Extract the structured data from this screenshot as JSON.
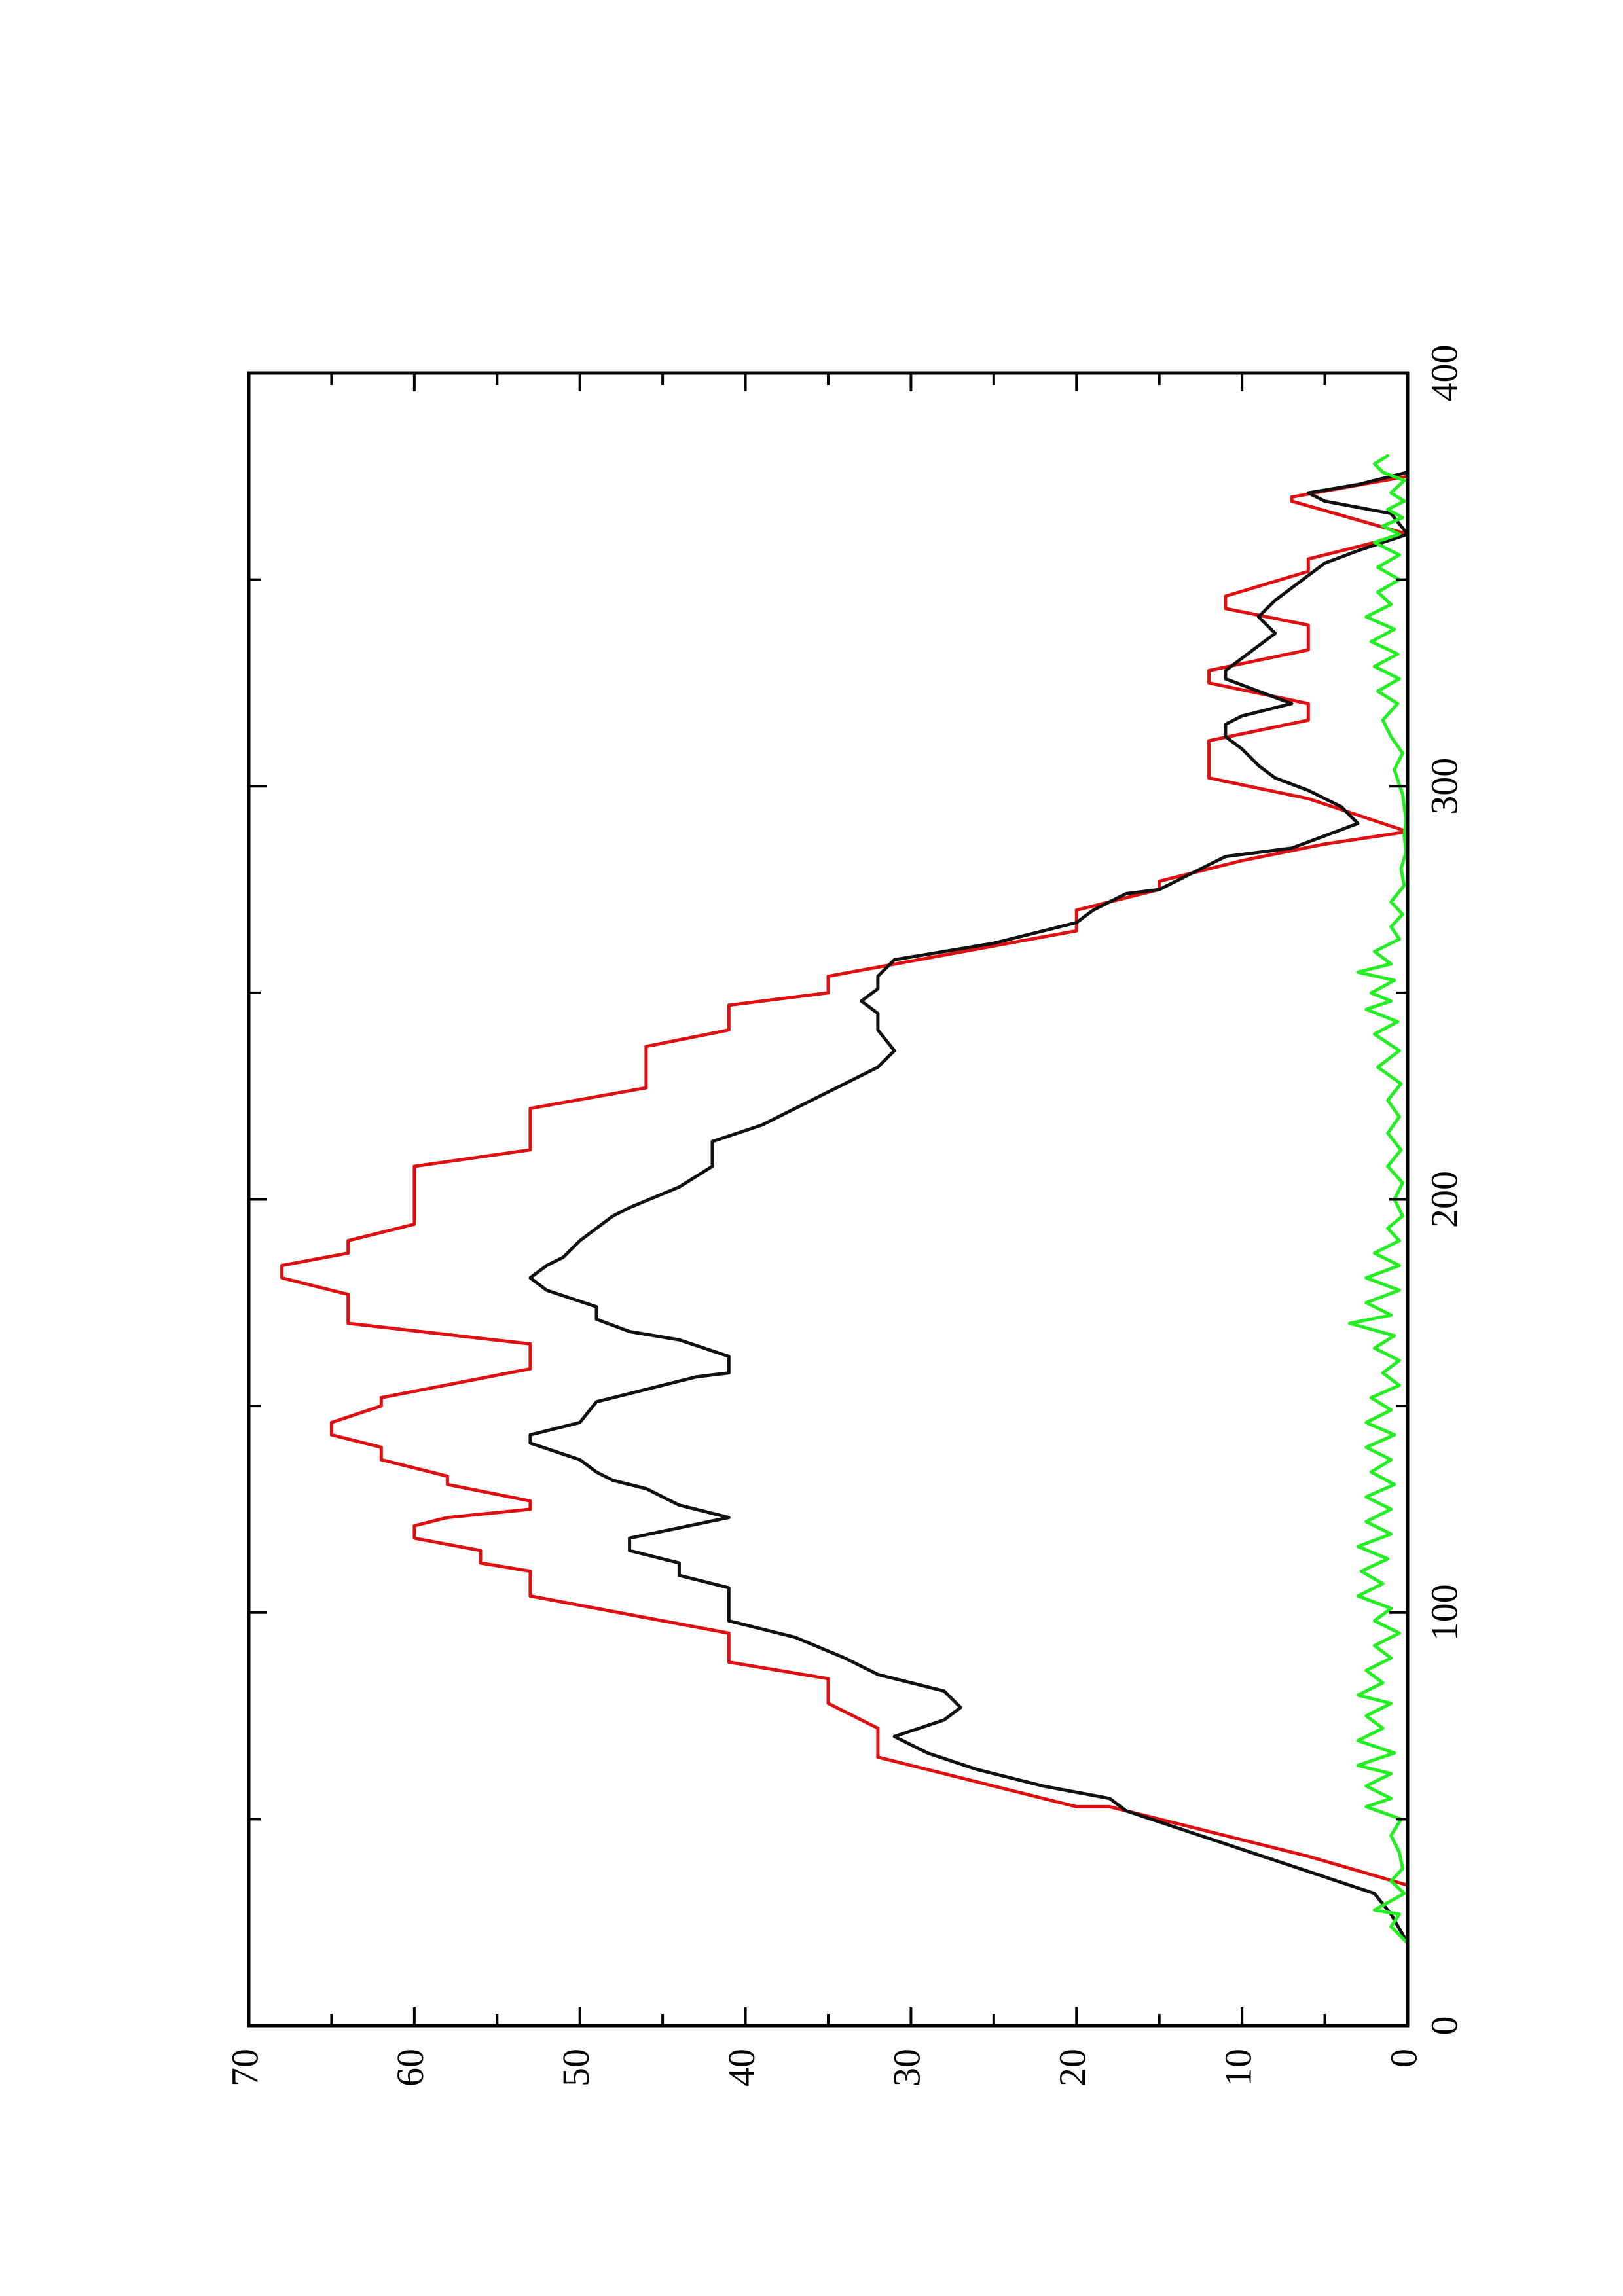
{
  "chart_data": {
    "type": "line",
    "title": "",
    "xlabel": "",
    "ylabel": "",
    "orientation": "rotated-90-ccw",
    "xlim": [
      0,
      400
    ],
    "ylim": [
      0,
      70
    ],
    "x_ticks": [
      0,
      100,
      200,
      300,
      400
    ],
    "y_ticks": [
      0,
      10,
      20,
      30,
      40,
      50,
      60,
      70
    ],
    "x_tick_labels": [
      "0",
      "100",
      "200",
      "300",
      "400"
    ],
    "y_tick_labels": [
      "0",
      "10",
      "20",
      "30",
      "40",
      "50",
      "60",
      "70"
    ],
    "grid": false,
    "legend": "none",
    "series": [
      {
        "color": "#dd1111",
        "points": [
          [
            34,
            0
          ],
          [
            41,
            6
          ],
          [
            47,
            12
          ],
          [
            53,
            18
          ],
          [
            53,
            20
          ],
          [
            59,
            26
          ],
          [
            65,
            32
          ],
          [
            72,
            32
          ],
          [
            78,
            35
          ],
          [
            84,
            35
          ],
          [
            88,
            41
          ],
          [
            95,
            41
          ],
          [
            104,
            53
          ],
          [
            110,
            53
          ],
          [
            112,
            56
          ],
          [
            115,
            56
          ],
          [
            118,
            60
          ],
          [
            121,
            60
          ],
          [
            123,
            58
          ],
          [
            125,
            53
          ],
          [
            127,
            53
          ],
          [
            131,
            58
          ],
          [
            133,
            58
          ],
          [
            137,
            62
          ],
          [
            140,
            62
          ],
          [
            143,
            65
          ],
          [
            146,
            65
          ],
          [
            150,
            62
          ],
          [
            152,
            62
          ],
          [
            159,
            53
          ],
          [
            165,
            53
          ],
          [
            170,
            64
          ],
          [
            177,
            64
          ],
          [
            181,
            68
          ],
          [
            184,
            68
          ],
          [
            187,
            64
          ],
          [
            190,
            64
          ],
          [
            194,
            60
          ],
          [
            208,
            60
          ],
          [
            212,
            53
          ],
          [
            222,
            53
          ],
          [
            227,
            46
          ],
          [
            237,
            46
          ],
          [
            241,
            41
          ],
          [
            247,
            41
          ],
          [
            250,
            35
          ],
          [
            254,
            35
          ],
          [
            265,
            20
          ],
          [
            270,
            20
          ],
          [
            275,
            15
          ],
          [
            277,
            15
          ],
          [
            282,
            10
          ],
          [
            286,
            5
          ],
          [
            289,
            0
          ],
          [
            297,
            6
          ],
          [
            302,
            12
          ],
          [
            311,
            12
          ],
          [
            316,
            6
          ],
          [
            320,
            6
          ],
          [
            325,
            12
          ],
          [
            328,
            12
          ],
          [
            333,
            6
          ],
          [
            339,
            6
          ],
          [
            343,
            11
          ],
          [
            346,
            11
          ],
          [
            352,
            6
          ],
          [
            355,
            6
          ],
          [
            361,
            0
          ],
          [
            369,
            7
          ],
          [
            370,
            7
          ],
          [
            375,
            0
          ]
        ]
      },
      {
        "color": "#111111",
        "points": [
          [
            5,
            0
          ],
          [
            20,
            0
          ],
          [
            27,
            1
          ],
          [
            32,
            2
          ],
          [
            36,
            5
          ],
          [
            40,
            8
          ],
          [
            44,
            11
          ],
          [
            48,
            14
          ],
          [
            52,
            17
          ],
          [
            55,
            18
          ],
          [
            58,
            22
          ],
          [
            62,
            26
          ],
          [
            66,
            29
          ],
          [
            70,
            31
          ],
          [
            74,
            28
          ],
          [
            77,
            27
          ],
          [
            81,
            28
          ],
          [
            85,
            32
          ],
          [
            89,
            34
          ],
          [
            94,
            37
          ],
          [
            98,
            41
          ],
          [
            106,
            41
          ],
          [
            109,
            44
          ],
          [
            112,
            44
          ],
          [
            115,
            47
          ],
          [
            118,
            47
          ],
          [
            123,
            41
          ],
          [
            126,
            44
          ],
          [
            130,
            46
          ],
          [
            132,
            48
          ],
          [
            134,
            49
          ],
          [
            137,
            50
          ],
          [
            141,
            53
          ],
          [
            143,
            53
          ],
          [
            146,
            50
          ],
          [
            151,
            49
          ],
          [
            153,
            47
          ],
          [
            157,
            43
          ],
          [
            158,
            41
          ],
          [
            162,
            41
          ],
          [
            166,
            44
          ],
          [
            168,
            47
          ],
          [
            171,
            49
          ],
          [
            174,
            49
          ],
          [
            178,
            52
          ],
          [
            181,
            53
          ],
          [
            184,
            52
          ],
          [
            186,
            51
          ],
          [
            190,
            50
          ],
          [
            196,
            48
          ],
          [
            198,
            47
          ],
          [
            203,
            44
          ],
          [
            208,
            42
          ],
          [
            211,
            42
          ],
          [
            214,
            42
          ],
          [
            218,
            39
          ],
          [
            222,
            37
          ],
          [
            226,
            35
          ],
          [
            232,
            32
          ],
          [
            236,
            31
          ],
          [
            241,
            32
          ],
          [
            245,
            32
          ],
          [
            248,
            33
          ],
          [
            251,
            32
          ],
          [
            254,
            32
          ],
          [
            258,
            31
          ],
          [
            262,
            25
          ],
          [
            267,
            20
          ],
          [
            270,
            19
          ],
          [
            274,
            17
          ],
          [
            275,
            15
          ],
          [
            279,
            13
          ],
          [
            283,
            11
          ],
          [
            285,
            7
          ],
          [
            288,
            5
          ],
          [
            291,
            3
          ],
          [
            295,
            4
          ],
          [
            299,
            6
          ],
          [
            302,
            8
          ],
          [
            305,
            9
          ],
          [
            309,
            10
          ],
          [
            312,
            11
          ],
          [
            315,
            11
          ],
          [
            317,
            10
          ],
          [
            320,
            7
          ],
          [
            323,
            9
          ],
          [
            326,
            11
          ],
          [
            328,
            11
          ],
          [
            331,
            10
          ],
          [
            334,
            9
          ],
          [
            337,
            8
          ],
          [
            341,
            9
          ],
          [
            345,
            8
          ],
          [
            348,
            7
          ],
          [
            351,
            6
          ],
          [
            354,
            5
          ],
          [
            357,
            3
          ],
          [
            361,
            0
          ],
          [
            366,
            1
          ],
          [
            369,
            5
          ],
          [
            371,
            6
          ],
          [
            373,
            3
          ],
          [
            376,
            0
          ],
          [
            381,
            0
          ]
        ]
      },
      {
        "color": "#22ee22",
        "points": [
          [
            5,
            0
          ],
          [
            20,
            0
          ],
          [
            24,
            1
          ],
          [
            27,
            0.5
          ],
          [
            28,
            2
          ],
          [
            32,
            0.2
          ],
          [
            35,
            1
          ],
          [
            38,
            0.3
          ],
          [
            42,
            0.5
          ],
          [
            46,
            1
          ],
          [
            50,
            0.4
          ],
          [
            53,
            2.5
          ],
          [
            55,
            1
          ],
          [
            58,
            2.5
          ],
          [
            61,
            1
          ],
          [
            63,
            3
          ],
          [
            66,
            0.8
          ],
          [
            69,
            3
          ],
          [
            72,
            1.5
          ],
          [
            75,
            2.5
          ],
          [
            78,
            1
          ],
          [
            80,
            3
          ],
          [
            83,
            1.5
          ],
          [
            86,
            2.5
          ],
          [
            89,
            1
          ],
          [
            92,
            2
          ],
          [
            95,
            0.5
          ],
          [
            98,
            2
          ],
          [
            101,
            1
          ],
          [
            104,
            3
          ],
          [
            107,
            1.5
          ],
          [
            110,
            2.8
          ],
          [
            113,
            1.2
          ],
          [
            116,
            3
          ],
          [
            119,
            1
          ],
          [
            122,
            2.5
          ],
          [
            125,
            1
          ],
          [
            128,
            2.5
          ],
          [
            131,
            0.8
          ],
          [
            134,
            2.2
          ],
          [
            137,
            1
          ],
          [
            140,
            2.5
          ],
          [
            143,
            0.8
          ],
          [
            146,
            2.5
          ],
          [
            149,
            1
          ],
          [
            152,
            2.2
          ],
          [
            155,
            0.5
          ],
          [
            158,
            1.5
          ],
          [
            161,
            0.5
          ],
          [
            164,
            2
          ],
          [
            167,
            0.8
          ],
          [
            170,
            3.5
          ],
          [
            172,
            1
          ],
          [
            175,
            2.5
          ],
          [
            178,
            0.5
          ],
          [
            181,
            2.5
          ],
          [
            184,
            0.5
          ],
          [
            187,
            2
          ],
          [
            190,
            0.5
          ],
          [
            193,
            1.2
          ],
          [
            196,
            0.3
          ],
          [
            200,
            0.8
          ],
          [
            204,
            0.3
          ],
          [
            208,
            1.2
          ],
          [
            212,
            0.4
          ],
          [
            216,
            1.2
          ],
          [
            220,
            0.5
          ],
          [
            224,
            1.2
          ],
          [
            228,
            0.4
          ],
          [
            232,
            1.8
          ],
          [
            236,
            0.5
          ],
          [
            240,
            2
          ],
          [
            243,
            0.6
          ],
          [
            246,
            2.5
          ],
          [
            248,
            1
          ],
          [
            250,
            2.2
          ],
          [
            253,
            0.8
          ],
          [
            255,
            3
          ],
          [
            257,
            1
          ],
          [
            260,
            2
          ],
          [
            263,
            0.5
          ],
          [
            266,
            1
          ],
          [
            269,
            0.3
          ],
          [
            272,
            1
          ],
          [
            276,
            0.2
          ],
          [
            280,
            0.4
          ],
          [
            284,
            0.1
          ],
          [
            288,
            0.2
          ],
          [
            292,
            0.1
          ],
          [
            298,
            0.3
          ],
          [
            304,
            0.8
          ],
          [
            308,
            0.3
          ],
          [
            312,
            1
          ],
          [
            316,
            1.5
          ],
          [
            320,
            0.6
          ],
          [
            323,
            1.8
          ],
          [
            326,
            0.5
          ],
          [
            329,
            2
          ],
          [
            332,
            0.6
          ],
          [
            335,
            2.2
          ],
          [
            338,
            0.8
          ],
          [
            341,
            2.5
          ],
          [
            344,
            1
          ],
          [
            347,
            1.8
          ],
          [
            350,
            0.5
          ],
          [
            353,
            1.8
          ],
          [
            356,
            0.5
          ],
          [
            359,
            2
          ],
          [
            361,
            0.5
          ],
          [
            363,
            1.5
          ],
          [
            365,
            0.3
          ],
          [
            367,
            1.2
          ],
          [
            369,
            0.2
          ],
          [
            371,
            1
          ],
          [
            374,
            0.2
          ],
          [
            376,
            1.5
          ],
          [
            378,
            2
          ],
          [
            380,
            1.2
          ]
        ]
      }
    ]
  }
}
